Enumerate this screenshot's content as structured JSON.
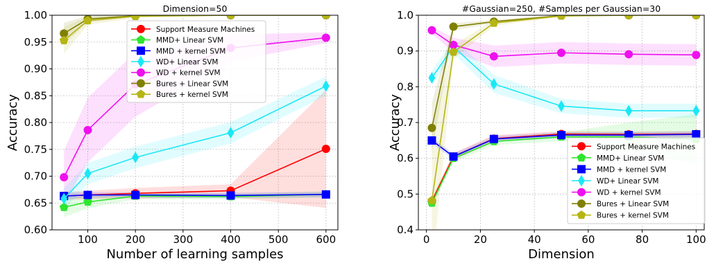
{
  "colors": {
    "Support Measure Machines": "#ff0000",
    "MMD+ Linear SVM": "#2ee62e",
    "MMD + kernel SVM": "#0000ff",
    "WD+ Linear SVM": "#1ae8f5",
    "WD + kernel SVM": "#ee10ee",
    "Bures + Linear SVM": "#808000",
    "Bures + kernel SVM": "#b5b514"
  },
  "chart_data": [
    {
      "type": "line",
      "title": "Dimension=50",
      "xlabel": "Number of learning samples",
      "ylabel": "Accuracy",
      "xlim": [
        25,
        625
      ],
      "ylim": [
        0.6,
        1.0
      ],
      "xticks": [
        100,
        200,
        300,
        400,
        500,
        600
      ],
      "xtick_labels": [
        "100",
        "200",
        "300",
        "400",
        "500",
        "600"
      ],
      "yticks": [
        0.6,
        0.65,
        0.7,
        0.75,
        0.8,
        0.85,
        0.9,
        0.95,
        1.0
      ],
      "ytick_labels": [
        "0.60",
        "0.65",
        "0.70",
        "0.75",
        "0.80",
        "0.85",
        "0.90",
        "0.95",
        "1.00"
      ],
      "grid": true,
      "legend_position": "top-center",
      "x": [
        50,
        100,
        200,
        400,
        600
      ],
      "series": [
        {
          "name": "Support Measure Machines",
          "marker": "circle",
          "values": [
            0.663,
            0.665,
            0.668,
            0.673,
            0.751
          ],
          "band": [
            0.008,
            0.008,
            0.01,
            0.012,
            0.11
          ]
        },
        {
          "name": "MMD+ Linear SVM",
          "marker": "pentagon",
          "values": [
            0.642,
            0.652,
            0.663,
            0.662,
            0.666
          ],
          "band": [
            0.018,
            0.012,
            0.006,
            0.005,
            0.006
          ]
        },
        {
          "name": "MMD + kernel SVM",
          "marker": "square",
          "values": [
            0.663,
            0.665,
            0.665,
            0.664,
            0.666
          ],
          "band": [
            0.006,
            0.005,
            0.005,
            0.005,
            0.005
          ]
        },
        {
          "name": "WD+ Linear SVM",
          "marker": "diamond",
          "values": [
            0.658,
            0.705,
            0.735,
            0.781,
            0.868
          ],
          "band": [
            0.02,
            0.02,
            0.02,
            0.02,
            0.018
          ]
        },
        {
          "name": "WD + kernel SVM",
          "marker": "circle",
          "values": [
            0.698,
            0.786,
            0.871,
            0.939,
            0.958
          ],
          "band": [
            0.05,
            0.06,
            0.06,
            0.025,
            0.01
          ]
        },
        {
          "name": "Bures + Linear SVM",
          "marker": "circle",
          "values": [
            0.966,
            0.993,
            0.999,
            1.0,
            1.0
          ],
          "band": [
            0.02,
            0.006,
            0.002,
            0.001,
            0.001
          ]
        },
        {
          "name": "Bures + kernel SVM",
          "marker": "pentagon",
          "values": [
            0.953,
            0.99,
            0.998,
            1.0,
            1.0
          ],
          "band": [
            0.025,
            0.008,
            0.003,
            0.001,
            0.001
          ]
        }
      ]
    },
    {
      "type": "line",
      "title": "#Gaussian=250, #Samples per Gaussian=30",
      "xlabel": "Dimension",
      "ylabel": "Accuracy",
      "xlim": [
        -3,
        103
      ],
      "ylim": [
        0.4,
        1.0
      ],
      "xticks": [
        0,
        20,
        40,
        60,
        80,
        100
      ],
      "xtick_labels": [
        "0",
        "20",
        "40",
        "60",
        "80",
        "100"
      ],
      "yticks": [
        0.4,
        0.5,
        0.6,
        0.7,
        0.8,
        0.9,
        1.0
      ],
      "ytick_labels": [
        "0.4",
        "0.5",
        "0.6",
        "0.7",
        "0.8",
        "0.9",
        "1.0"
      ],
      "grid": true,
      "legend_position": "lower-right",
      "x": [
        2,
        10,
        25,
        50,
        75,
        100
      ],
      "series": [
        {
          "name": "Support Measure Machines",
          "marker": "circle",
          "values": [
            0.48,
            0.605,
            0.655,
            0.668,
            0.667,
            0.668
          ],
          "band": [
            0.01,
            0.01,
            0.01,
            0.008,
            0.008,
            0.008
          ]
        },
        {
          "name": "MMD+ Linear SVM",
          "marker": "pentagon",
          "values": [
            0.475,
            0.6,
            0.647,
            0.66,
            0.66,
            0.653
          ],
          "band": [
            0.01,
            0.01,
            0.01,
            0.012,
            0.04,
            0.07
          ]
        },
        {
          "name": "MMD + kernel SVM",
          "marker": "square",
          "values": [
            0.65,
            0.605,
            0.654,
            0.665,
            0.665,
            0.667
          ],
          "band": [
            0.008,
            0.008,
            0.008,
            0.008,
            0.008,
            0.008
          ]
        },
        {
          "name": "WD+ Linear SVM",
          "marker": "diamond",
          "values": [
            0.825,
            0.912,
            0.808,
            0.746,
            0.733,
            0.733
          ],
          "band": [
            0.02,
            0.02,
            0.025,
            0.02,
            0.02,
            0.02
          ]
        },
        {
          "name": "WD + kernel SVM",
          "marker": "circle",
          "values": [
            0.958,
            0.917,
            0.885,
            0.895,
            0.891,
            0.889
          ],
          "band": [
            0.01,
            0.02,
            0.03,
            0.03,
            0.03,
            0.03
          ]
        },
        {
          "name": "Bures + Linear SVM",
          "marker": "circle",
          "values": [
            0.685,
            0.968,
            0.982,
            0.999,
            1.0,
            1.0
          ],
          "band": [
            0.07,
            0.01,
            0.005,
            0.002,
            0.001,
            0.001
          ]
        },
        {
          "name": "Bures + kernel SVM",
          "marker": "pentagon",
          "values": [
            0.482,
            0.897,
            0.978,
            0.998,
            1.0,
            1.0
          ],
          "band": [
            0.2,
            0.02,
            0.008,
            0.002,
            0.001,
            0.001
          ]
        }
      ]
    }
  ]
}
